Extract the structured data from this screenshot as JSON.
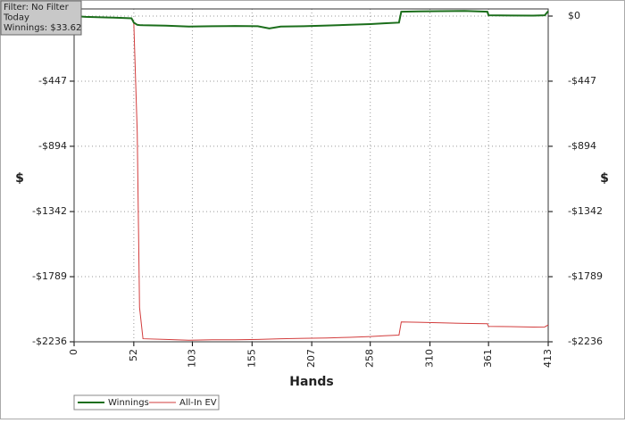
{
  "chart_data": {
    "type": "line",
    "info": [
      "Filter: No Filter",
      "Today",
      "Winnings: $33.62"
    ],
    "x_label": "Hands",
    "y_label": "$",
    "x": [
      0,
      10,
      20,
      30,
      40,
      50,
      52,
      55,
      57,
      60,
      80,
      100,
      120,
      140,
      160,
      170,
      180,
      200,
      220,
      240,
      258,
      270,
      283,
      285,
      300,
      320,
      340,
      360,
      361,
      380,
      400,
      410,
      413
    ],
    "series": [
      {
        "name": "Winnings",
        "color": "#1b6e1b",
        "values": [
          0,
          -5,
          -8,
          -10,
          -12,
          -15,
          -45,
          -60,
          -62,
          -63,
          -66,
          -72,
          -70,
          -68,
          -70,
          -85,
          -72,
          -70,
          -65,
          -60,
          -55,
          -50,
          -45,
          30,
          32,
          34,
          35,
          30,
          5,
          4,
          3,
          5,
          33.62
        ]
      },
      {
        "name": "All-In EV",
        "color": "#d23c3c",
        "values": [
          0,
          -5,
          -8,
          -10,
          -12,
          -15,
          -45,
          -800,
          -2000,
          -2215,
          -2220,
          -2225,
          -2222,
          -2222,
          -2220,
          -2218,
          -2215,
          -2212,
          -2210,
          -2205,
          -2200,
          -2195,
          -2190,
          -2100,
          -2102,
          -2106,
          -2110,
          -2112,
          -2130,
          -2132,
          -2135,
          -2134,
          -2120
        ]
      }
    ],
    "xlim": [
      0,
      413
    ],
    "xticks": [
      0,
      52,
      103,
      155,
      207,
      258,
      310,
      361,
      413
    ],
    "ylim": [
      -2236,
      49
    ],
    "yticks": [
      {
        "value": 0,
        "label": "$0"
      },
      {
        "value": -447,
        "label": "-$447"
      },
      {
        "value": -894,
        "label": "-$894"
      },
      {
        "value": -1342,
        "label": "-$1342"
      },
      {
        "value": -1789,
        "label": "-$1789"
      },
      {
        "value": -2236,
        "label": "-$2236"
      }
    ],
    "grid": true
  }
}
